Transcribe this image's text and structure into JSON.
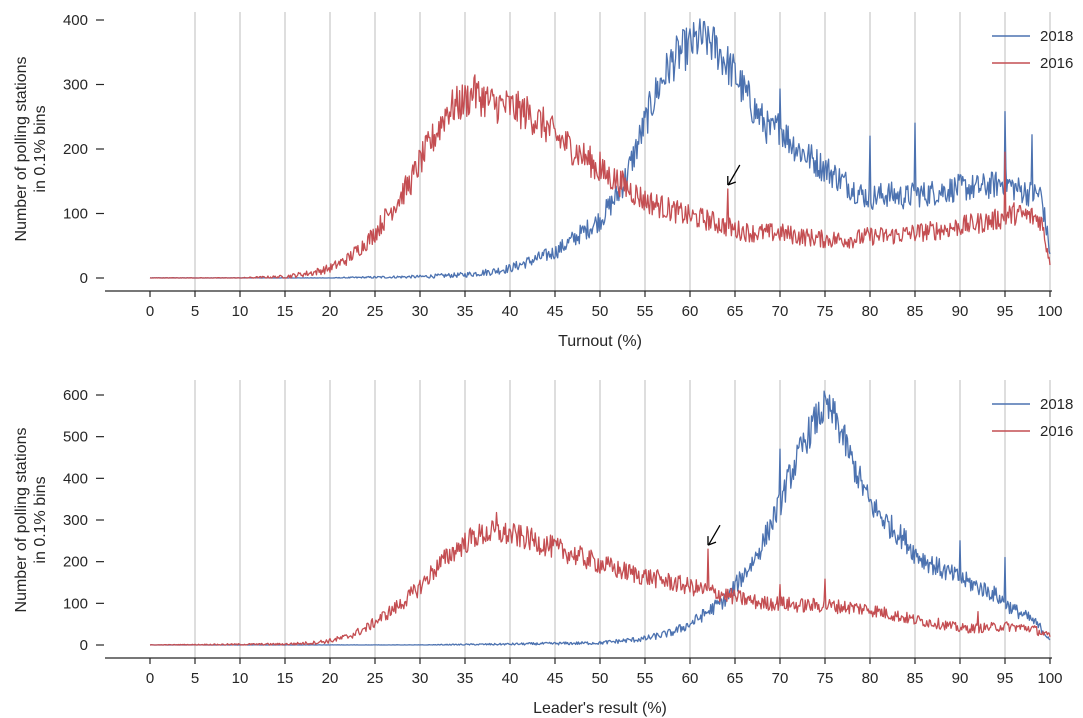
{
  "chart_data": [
    {
      "type": "line",
      "xlabel": "Turnout (%)",
      "ylabel": "Number of polling stations\nin 0.1% bins",
      "xlim": [
        0,
        100
      ],
      "ylim": [
        0,
        400
      ],
      "xticks": [
        0,
        5,
        10,
        15,
        20,
        25,
        30,
        35,
        40,
        45,
        50,
        55,
        60,
        65,
        70,
        75,
        80,
        85,
        90,
        95,
        100
      ],
      "yticks": [
        0,
        100,
        200,
        300,
        400
      ],
      "grid": "vertical",
      "legend_position": "top-right",
      "series": [
        {
          "name": "2018",
          "color": "#4c72b0",
          "x": [
            0,
            10,
            20,
            30,
            35,
            38,
            40,
            42,
            45,
            47,
            50,
            52,
            53,
            54,
            55,
            56,
            57,
            58,
            59,
            60,
            61,
            62,
            63,
            64,
            65,
            66,
            67,
            68,
            69,
            70,
            71,
            72,
            73,
            74,
            75,
            76,
            77,
            78,
            79,
            80,
            82,
            84,
            85,
            86,
            88,
            90,
            92,
            94,
            95,
            96,
            98,
            99,
            100
          ],
          "y": [
            0,
            0,
            0,
            2,
            5,
            10,
            15,
            25,
            40,
            60,
            90,
            130,
            160,
            200,
            240,
            280,
            310,
            335,
            350,
            360,
            370,
            370,
            355,
            335,
            315,
            290,
            265,
            245,
            225,
            235,
            215,
            200,
            190,
            180,
            170,
            160,
            150,
            140,
            130,
            125,
            130,
            125,
            130,
            130,
            135,
            140,
            140,
            145,
            150,
            140,
            130,
            130,
            40
          ],
          "spikes": [
            [
              62,
              390
            ],
            [
              70,
              293
            ],
            [
              80,
              220
            ],
            [
              85,
              240
            ],
            [
              95,
              258
            ],
            [
              98,
              222
            ]
          ]
        },
        {
          "name": "2016",
          "color": "#c44e52",
          "x": [
            0,
            10,
            15,
            18,
            20,
            22,
            24,
            25,
            27,
            29,
            30,
            32,
            33,
            35,
            36,
            37,
            38,
            40,
            42,
            44,
            45,
            47,
            49,
            50,
            52,
            55,
            58,
            60,
            62,
            64,
            65,
            67,
            70,
            72,
            75,
            78,
            80,
            82,
            85,
            88,
            90,
            92,
            94,
            95,
            96,
            98,
            99,
            100
          ],
          "y": [
            0,
            0,
            2,
            8,
            15,
            30,
            55,
            70,
            110,
            150,
            180,
            230,
            260,
            275,
            285,
            280,
            270,
            265,
            255,
            235,
            220,
            200,
            180,
            165,
            150,
            120,
            105,
            95,
            90,
            80,
            75,
            70,
            70,
            65,
            60,
            60,
            65,
            65,
            70,
            75,
            80,
            85,
            90,
            95,
            100,
            95,
            90,
            25
          ],
          "spikes": [
            [
              36,
              310
            ],
            [
              50,
              195
            ],
            [
              64.2,
              138
            ],
            [
              95,
              195
            ]
          ]
        }
      ],
      "annotations": [
        {
          "type": "arrow",
          "text": "",
          "x": 64.2,
          "y": 138
        }
      ]
    },
    {
      "type": "line",
      "xlabel": "Leader's result (%)",
      "ylabel": "Number of polling stations\nin 0.1% bins",
      "xlim": [
        0,
        100
      ],
      "ylim": [
        0,
        600
      ],
      "xticks": [
        0,
        5,
        10,
        15,
        20,
        25,
        30,
        35,
        40,
        45,
        50,
        55,
        60,
        65,
        70,
        75,
        80,
        85,
        90,
        95,
        100
      ],
      "yticks": [
        0,
        100,
        200,
        300,
        400,
        500,
        600
      ],
      "grid": "vertical",
      "legend_position": "top-right",
      "series": [
        {
          "name": "2018",
          "color": "#4c72b0",
          "x": [
            0,
            30,
            40,
            50,
            55,
            58,
            60,
            62,
            64,
            65,
            66,
            67,
            68,
            69,
            70,
            71,
            72,
            73,
            74,
            75,
            76,
            77,
            78,
            79,
            80,
            82,
            84,
            85,
            86,
            88,
            90,
            92,
            94,
            95,
            96,
            98,
            99,
            100
          ],
          "y": [
            0,
            0,
            2,
            5,
            15,
            30,
            50,
            80,
            110,
            140,
            170,
            200,
            240,
            290,
            340,
            400,
            450,
            500,
            540,
            570,
            550,
            500,
            440,
            390,
            340,
            290,
            250,
            220,
            205,
            180,
            160,
            140,
            120,
            100,
            85,
            60,
            40,
            15
          ],
          "spikes": [
            [
              75,
              600
            ],
            [
              90,
              250
            ],
            [
              95,
              210
            ],
            [
              70,
              470
            ]
          ]
        },
        {
          "name": "2016",
          "color": "#c44e52",
          "x": [
            0,
            15,
            18,
            20,
            22,
            24,
            26,
            28,
            30,
            32,
            34,
            36,
            38,
            40,
            42,
            44,
            46,
            48,
            50,
            52,
            55,
            58,
            60,
            62,
            64,
            66,
            68,
            70,
            72,
            75,
            78,
            80,
            82,
            85,
            88,
            90,
            92,
            95,
            98,
            100
          ],
          "y": [
            0,
            2,
            5,
            10,
            20,
            40,
            70,
            100,
            140,
            190,
            230,
            260,
            270,
            265,
            255,
            240,
            225,
            210,
            195,
            180,
            165,
            150,
            140,
            130,
            120,
            110,
            100,
            100,
            95,
            95,
            90,
            85,
            75,
            60,
            50,
            40,
            40,
            45,
            40,
            20
          ],
          "spikes": [
            [
              38.5,
              318
            ],
            [
              62,
              230
            ],
            [
              70,
              145
            ],
            [
              75,
              158
            ],
            [
              92,
              80
            ]
          ]
        }
      ],
      "annotations": [
        {
          "type": "arrow",
          "text": "",
          "x": 62,
          "y": 230
        }
      ]
    }
  ]
}
